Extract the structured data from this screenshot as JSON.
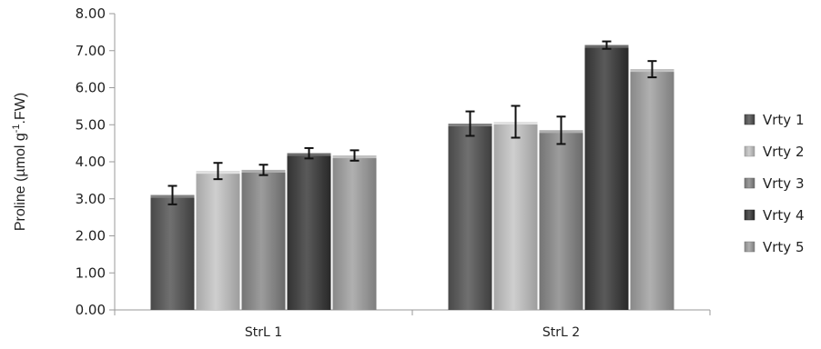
{
  "chart_data": {
    "type": "bar",
    "title": "",
    "xlabel": "",
    "ylabel": "Proline (µmol g",
    "ylabel_sup": "-1",
    "ylabel_tail": ".FW)",
    "ylim": [
      0,
      8
    ],
    "yticks": [
      "0.00",
      "1.00",
      "2.00",
      "3.00",
      "4.00",
      "5.00",
      "6.00",
      "7.00",
      "8.00"
    ],
    "categories": [
      "StrL 1",
      "StrL 2"
    ],
    "series": [
      {
        "name": "Vrty 1",
        "values": [
          3.1,
          5.03
        ],
        "errors": [
          0.25,
          0.33
        ],
        "color": "#5a5a5a"
      },
      {
        "name": "Vrty 2",
        "values": [
          3.75,
          5.08
        ],
        "errors": [
          0.22,
          0.43
        ],
        "color": "#b9b9b9"
      },
      {
        "name": "Vrty 3",
        "values": [
          3.78,
          4.85
        ],
        "errors": [
          0.14,
          0.37
        ],
        "color": "#868686"
      },
      {
        "name": "Vrty 4",
        "values": [
          4.23,
          7.15
        ],
        "errors": [
          0.14,
          0.1
        ],
        "color": "#444444"
      },
      {
        "name": "Vrty 5",
        "values": [
          4.17,
          6.5
        ],
        "errors": [
          0.14,
          0.22
        ],
        "color": "#9a9a9a"
      }
    ],
    "legend_position": "right",
    "grid": false
  }
}
